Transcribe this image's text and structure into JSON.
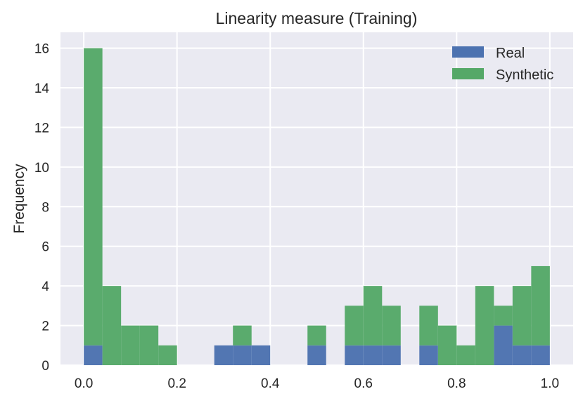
{
  "chart_data": {
    "type": "bar",
    "title": "Linearity measure (Training)",
    "xlabel": "",
    "ylabel": "Frequency",
    "xlim": [
      -0.05,
      1.05
    ],
    "ylim": [
      0,
      16.8
    ],
    "xticks": [
      "0.0",
      "0.2",
      "0.4",
      "0.6",
      "0.8",
      "1.0"
    ],
    "yticks": [
      "0",
      "2",
      "4",
      "6",
      "8",
      "10",
      "12",
      "14",
      "16"
    ],
    "grid": true,
    "stacked": true,
    "legend_position": "top-right",
    "bin_edges": [
      0.0,
      0.04,
      0.08,
      0.12,
      0.16,
      0.2,
      0.24,
      0.28,
      0.32,
      0.36,
      0.4,
      0.44,
      0.48,
      0.52,
      0.56,
      0.6,
      0.64,
      0.68,
      0.72,
      0.76,
      0.8,
      0.84,
      0.88,
      0.92,
      0.96,
      1.0
    ],
    "series": [
      {
        "name": "Real",
        "color": "#4c72b0",
        "values": [
          1,
          0,
          0,
          0,
          0,
          0,
          0,
          1,
          1,
          1,
          0,
          0,
          1,
          0,
          1,
          1,
          1,
          0,
          1,
          0,
          0,
          0,
          2,
          1,
          1
        ]
      },
      {
        "name": "Synthetic",
        "color": "#55a868",
        "values": [
          15,
          4,
          2,
          2,
          1,
          0,
          0,
          0,
          1,
          0,
          0,
          0,
          1,
          0,
          2,
          3,
          2,
          0,
          2,
          2,
          1,
          4,
          1,
          3,
          4
        ]
      }
    ]
  }
}
